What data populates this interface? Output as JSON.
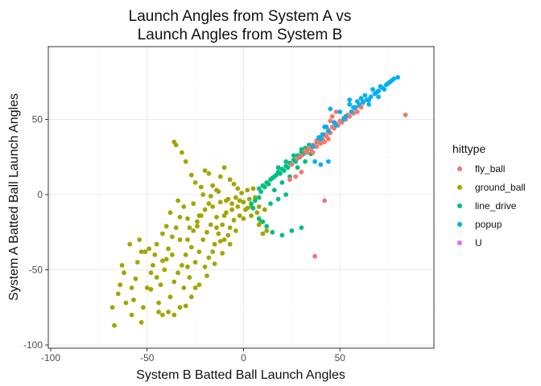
{
  "chart_data": {
    "type": "scatter",
    "title_lines": [
      "Launch Angles from System A vs",
      "Launch Angles from System B"
    ],
    "xlabel": "System B Batted Ball Launch Angles",
    "ylabel": "System A Batted Ball Launch Angles",
    "xlim": [
      -100,
      100
    ],
    "ylim": [
      -100,
      100
    ],
    "xticks": [
      -100,
      -50,
      0,
      50
    ],
    "yticks": [
      -100,
      -50,
      0,
      50
    ],
    "xtick_labels": [
      "-100",
      "-50",
      "0",
      "50"
    ],
    "ytick_labels": [
      "-100",
      "-50",
      "0",
      "50"
    ],
    "grid": true,
    "legend": {
      "title": "hittype",
      "placement": "right",
      "entries": [
        {
          "label": "fly_ball",
          "color": "#F8766D"
        },
        {
          "label": "ground_ball",
          "color": "#A3A500"
        },
        {
          "label": "line_drive",
          "color": "#00BF7D"
        },
        {
          "label": "popup",
          "color": "#00B0F6"
        },
        {
          "label": "U",
          "color": "#E76BF3"
        }
      ]
    },
    "series": [
      {
        "name": "ground_ball",
        "color": "#A3A500",
        "points": [
          [
            -67,
            -87
          ],
          [
            -68,
            -75
          ],
          [
            -65,
            -66
          ],
          [
            -63,
            -47
          ],
          [
            -64,
            -60
          ],
          [
            -61,
            -72
          ],
          [
            -58,
            -80
          ],
          [
            -57,
            -70
          ],
          [
            -56,
            -56
          ],
          [
            -55,
            -45
          ],
          [
            -53,
            -85
          ],
          [
            -52,
            -75
          ],
          [
            -51,
            -38
          ],
          [
            -50,
            -62
          ],
          [
            -48,
            -52
          ],
          [
            -47,
            -47
          ],
          [
            -46,
            -40
          ],
          [
            -45,
            -33
          ],
          [
            -44,
            -72
          ],
          [
            -43,
            -60
          ],
          [
            -42,
            -80
          ],
          [
            -41,
            -50
          ],
          [
            -40,
            -43
          ],
          [
            -39,
            -36
          ],
          [
            -38,
            -68
          ],
          [
            -37,
            -28
          ],
          [
            -36,
            -58
          ],
          [
            -35,
            -22
          ],
          [
            -34,
            -52
          ],
          [
            -33,
            -15
          ],
          [
            -32,
            -47
          ],
          [
            -31,
            -62
          ],
          [
            -30,
            -40
          ],
          [
            -29,
            -30
          ],
          [
            -28,
            -55
          ],
          [
            -27,
            -35
          ],
          [
            -26,
            -24
          ],
          [
            -25,
            -45
          ],
          [
            -24,
            -18
          ],
          [
            -23,
            -38
          ],
          [
            -22,
            -14
          ],
          [
            -21,
            -30
          ],
          [
            -20,
            -10
          ],
          [
            -19,
            -25
          ],
          [
            -18,
            -42
          ],
          [
            -17,
            -20
          ],
          [
            -16,
            -8
          ],
          [
            -15,
            -33
          ],
          [
            -14,
            -15
          ],
          [
            -13,
            -26
          ],
          [
            -12,
            -5
          ],
          [
            -11,
            -20
          ],
          [
            -10,
            -30
          ],
          [
            -9,
            -12
          ],
          [
            -8,
            -3
          ],
          [
            -7,
            -22
          ],
          [
            -6,
            -10
          ],
          [
            -5,
            -17
          ],
          [
            -4,
            -2
          ],
          [
            -3,
            -8
          ],
          [
            -2,
            -14
          ],
          [
            -1,
            1
          ],
          [
            0,
            -5
          ],
          [
            1,
            -10
          ],
          [
            2,
            3
          ],
          [
            3,
            -3
          ],
          [
            4,
            -8
          ],
          [
            5,
            4
          ],
          [
            6,
            -2
          ],
          [
            7,
            -12
          ],
          [
            8,
            -20
          ],
          [
            9,
            -18
          ],
          [
            10,
            -26
          ],
          [
            11,
            -10
          ],
          [
            12,
            -24
          ],
          [
            -36,
            35
          ],
          [
            -35,
            33
          ],
          [
            -32,
            28
          ],
          [
            -30,
            22
          ],
          [
            -27,
            13
          ],
          [
            -25,
            8
          ],
          [
            -22,
            5
          ],
          [
            -20,
            16
          ],
          [
            -18,
            14
          ],
          [
            -16,
            6
          ],
          [
            -14,
            3
          ],
          [
            -12,
            12
          ],
          [
            -10,
            18
          ],
          [
            -7,
            10
          ],
          [
            -5,
            7
          ],
          [
            -3,
            4
          ],
          [
            -24,
            -21
          ],
          [
            -29,
            -16
          ],
          [
            -40,
            -21
          ],
          [
            -42,
            -26
          ],
          [
            -45,
            -55
          ],
          [
            -48,
            -63
          ],
          [
            -53,
            -38
          ],
          [
            -58,
            -62
          ],
          [
            -62,
            -52
          ],
          [
            -39,
            -78
          ],
          [
            -33,
            -75
          ],
          [
            -27,
            -68
          ],
          [
            -23,
            -60
          ],
          [
            -19,
            -54
          ],
          [
            -15,
            -46
          ],
          [
            -11,
            -39
          ],
          [
            -7,
            -33
          ],
          [
            -30,
            -74
          ],
          [
            -36,
            -80
          ],
          [
            -44,
            -78
          ],
          [
            -49,
            -36
          ],
          [
            -54,
            -30
          ],
          [
            -59,
            -33
          ],
          [
            -26,
            -6
          ],
          [
            -21,
            0
          ],
          [
            -17,
            -1
          ],
          [
            -13,
            2
          ],
          [
            -9,
            -4
          ],
          [
            -38,
            -12
          ],
          [
            -34,
            -4
          ],
          [
            -31,
            -8
          ],
          [
            -29,
            -48
          ],
          [
            -25,
            -62
          ],
          [
            -20,
            -48
          ],
          [
            -16,
            -38
          ],
          [
            -12,
            -31
          ],
          [
            -8,
            -27
          ],
          [
            -4,
            -24
          ],
          [
            0,
            -16
          ],
          [
            4,
            -14
          ],
          [
            8,
            -8
          ],
          [
            -42,
            -44
          ],
          [
            -37,
            -40
          ],
          [
            -33,
            -30
          ],
          [
            -28,
            -22
          ],
          [
            -23,
            -14
          ],
          [
            -18,
            -6
          ],
          [
            -14,
            -22
          ],
          [
            -10,
            -14
          ],
          [
            -6,
            -6
          ],
          [
            -2,
            -4
          ],
          [
            2,
            -9
          ]
        ]
      },
      {
        "name": "line_drive",
        "color": "#00BF7D",
        "points": [
          [
            8,
            4
          ],
          [
            10,
            6
          ],
          [
            12,
            8
          ],
          [
            14,
            10
          ],
          [
            16,
            12
          ],
          [
            18,
            15
          ],
          [
            20,
            17
          ],
          [
            22,
            19
          ],
          [
            24,
            21
          ],
          [
            26,
            23
          ],
          [
            28,
            26
          ],
          [
            30,
            28
          ],
          [
            32,
            31
          ],
          [
            34,
            33
          ],
          [
            15,
            11
          ],
          [
            19,
            14
          ],
          [
            23,
            18
          ],
          [
            27,
            22
          ],
          [
            31,
            27
          ],
          [
            13,
            7
          ],
          [
            17,
            13
          ],
          [
            21,
            16
          ],
          [
            25,
            20
          ],
          [
            29,
            25
          ],
          [
            33,
            30
          ],
          [
            11,
            5
          ],
          [
            9,
            2
          ],
          [
            22,
            22
          ],
          [
            18,
            18
          ],
          [
            26,
            26
          ],
          [
            30,
            30
          ],
          [
            5,
            -9
          ],
          [
            8,
            -16
          ],
          [
            10,
            -18
          ],
          [
            12,
            -21
          ],
          [
            15,
            -25
          ],
          [
            20,
            -27
          ],
          [
            25,
            -24
          ],
          [
            30,
            -22
          ],
          [
            14,
            -6
          ],
          [
            18,
            -3
          ],
          [
            22,
            0
          ],
          [
            16,
            3
          ],
          [
            20,
            8
          ],
          [
            24,
            12
          ],
          [
            28,
            18
          ],
          [
            32,
            22
          ],
          [
            35,
            27
          ],
          [
            36,
            32
          ],
          [
            38,
            35
          ],
          [
            6,
            -4
          ],
          [
            8,
            -2
          ],
          [
            4,
            -6
          ]
        ]
      },
      {
        "name": "fly_ball",
        "color": "#F8766D",
        "points": [
          [
            25,
            20
          ],
          [
            28,
            24
          ],
          [
            30,
            26
          ],
          [
            32,
            29
          ],
          [
            34,
            31
          ],
          [
            36,
            33
          ],
          [
            38,
            36
          ],
          [
            40,
            38
          ],
          [
            42,
            40
          ],
          [
            44,
            43
          ],
          [
            46,
            45
          ],
          [
            48,
            47
          ],
          [
            50,
            49
          ],
          [
            52,
            51
          ],
          [
            54,
            53
          ],
          [
            56,
            55
          ],
          [
            58,
            57
          ],
          [
            60,
            59
          ],
          [
            62,
            61
          ],
          [
            64,
            63
          ],
          [
            33,
            28
          ],
          [
            37,
            32
          ],
          [
            41,
            37
          ],
          [
            45,
            41
          ],
          [
            49,
            46
          ],
          [
            53,
            50
          ],
          [
            57,
            54
          ],
          [
            61,
            58
          ],
          [
            39,
            35
          ],
          [
            43,
            39
          ],
          [
            47,
            44
          ],
          [
            51,
            48
          ],
          [
            55,
            52
          ],
          [
            35,
            30
          ],
          [
            59,
            55
          ],
          [
            38,
            32
          ],
          [
            42,
            35
          ],
          [
            44,
            37
          ],
          [
            40,
            34
          ],
          [
            36,
            28
          ],
          [
            46,
            52
          ],
          [
            48,
            55
          ],
          [
            45,
            49
          ],
          [
            84,
            53
          ],
          [
            42,
            -4
          ],
          [
            37,
            -41
          ],
          [
            27,
            12
          ],
          [
            30,
            15
          ],
          [
            24,
            10
          ]
        ]
      },
      {
        "name": "popup",
        "color": "#00B0F6",
        "points": [
          [
            36,
            32
          ],
          [
            40,
            37
          ],
          [
            44,
            42
          ],
          [
            48,
            46
          ],
          [
            52,
            50
          ],
          [
            56,
            55
          ],
          [
            58,
            58
          ],
          [
            60,
            60
          ],
          [
            62,
            62
          ],
          [
            64,
            63
          ],
          [
            66,
            65
          ],
          [
            68,
            67
          ],
          [
            70,
            69
          ],
          [
            72,
            71
          ],
          [
            74,
            73
          ],
          [
            76,
            75
          ],
          [
            78,
            77
          ],
          [
            80,
            78
          ],
          [
            63,
            66
          ],
          [
            67,
            70
          ],
          [
            71,
            72
          ],
          [
            75,
            74
          ],
          [
            65,
            63
          ],
          [
            69,
            68
          ],
          [
            73,
            70
          ],
          [
            77,
            76
          ],
          [
            65,
            60
          ],
          [
            70,
            65
          ],
          [
            55,
            60
          ],
          [
            59,
            62
          ],
          [
            61,
            64
          ],
          [
            57,
            58
          ],
          [
            53,
            52
          ],
          [
            47,
            48
          ],
          [
            43,
            45
          ],
          [
            41,
            40
          ],
          [
            39,
            38
          ],
          [
            45,
            57
          ],
          [
            55,
            63
          ],
          [
            50,
            55
          ],
          [
            44,
            22
          ],
          [
            40,
            20
          ],
          [
            37,
            22
          ],
          [
            42,
            45
          ]
        ]
      },
      {
        "name": "U",
        "color": "#E76BF3",
        "points": []
      }
    ]
  }
}
